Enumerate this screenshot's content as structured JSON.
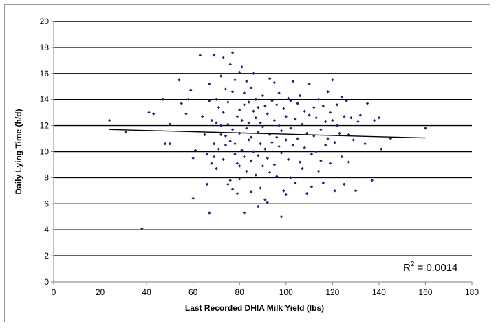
{
  "chart_data": {
    "type": "scatter",
    "xlabel": "Last Recorded DHIA Milk Yield (lbs)",
    "ylabel": "Daily Lying Time (h/d)",
    "xlim": [
      0,
      180
    ],
    "ylim": [
      0,
      20
    ],
    "xticks": [
      "0",
      "20",
      "40",
      "60",
      "80",
      "100",
      "120",
      "140",
      "160",
      "180"
    ],
    "yticks": [
      "0",
      "2",
      "4",
      "6",
      "8",
      "10",
      "12",
      "14",
      "16",
      "18",
      "20"
    ],
    "grid": "horizontal",
    "colors": {
      "points": "#1a237e",
      "trend": "#000000",
      "grid": "#000000"
    },
    "annotation": {
      "text": "R",
      "sup": "2",
      "rest": " = 0.0014",
      "position": "bottom-right"
    },
    "trendline": {
      "x": [
        24,
        160
      ],
      "y": [
        11.7,
        11.05
      ]
    },
    "points": [
      [
        24,
        12.4
      ],
      [
        31,
        11.5
      ],
      [
        38,
        4.1
      ],
      [
        41,
        13.0
      ],
      [
        43,
        12.9
      ],
      [
        47,
        14.0
      ],
      [
        48,
        10.6
      ],
      [
        50,
        10.6
      ],
      [
        50,
        12.1
      ],
      [
        54,
        15.5
      ],
      [
        55,
        13.7
      ],
      [
        57,
        12.9
      ],
      [
        58,
        14.0
      ],
      [
        59,
        14.7
      ],
      [
        60,
        9.5
      ],
      [
        60,
        6.4
      ],
      [
        61,
        10.1
      ],
      [
        63,
        17.4
      ],
      [
        64,
        12.7
      ],
      [
        65,
        11.3
      ],
      [
        66,
        7.5
      ],
      [
        66,
        9.8
      ],
      [
        67,
        5.3
      ],
      [
        67,
        15.2
      ],
      [
        67,
        13.9
      ],
      [
        68,
        9.1
      ],
      [
        68,
        12.4
      ],
      [
        69,
        17.4
      ],
      [
        69,
        10.6
      ],
      [
        69,
        9.6
      ],
      [
        70,
        14.0
      ],
      [
        70,
        8.7
      ],
      [
        70,
        12.2
      ],
      [
        71,
        13.4
      ],
      [
        71,
        10.2
      ],
      [
        72,
        15.8
      ],
      [
        72,
        12.0
      ],
      [
        72,
        11.3
      ],
      [
        73,
        17.2
      ],
      [
        73,
        13.0
      ],
      [
        73,
        9.4
      ],
      [
        74,
        14.8
      ],
      [
        74,
        11.2
      ],
      [
        74,
        10.5
      ],
      [
        75,
        13.8
      ],
      [
        75,
        7.5
      ],
      [
        75,
        12.1
      ],
      [
        76,
        7.8
      ],
      [
        76,
        10.8
      ],
      [
        76,
        16.7
      ],
      [
        77,
        17.6
      ],
      [
        77,
        14.6
      ],
      [
        77,
        11.7
      ],
      [
        77,
        7.1
      ],
      [
        78,
        10.6
      ],
      [
        78,
        9.8
      ],
      [
        78,
        15.5
      ],
      [
        79,
        12.7
      ],
      [
        79,
        9.1
      ],
      [
        79,
        6.8
      ],
      [
        80,
        13.2
      ],
      [
        80,
        11.4
      ],
      [
        80,
        7.9
      ],
      [
        80,
        16.1
      ],
      [
        80,
        8.9
      ],
      [
        81,
        16.5
      ],
      [
        81,
        12.4
      ],
      [
        81,
        10.1
      ],
      [
        82,
        14.5
      ],
      [
        82,
        5.3
      ],
      [
        82,
        9.6
      ],
      [
        82,
        13.6
      ],
      [
        83,
        15.4
      ],
      [
        83,
        11.8
      ],
      [
        83,
        8.5
      ],
      [
        84,
        13.8
      ],
      [
        84,
        10.9
      ],
      [
        84,
        12.2
      ],
      [
        85,
        9.3
      ],
      [
        85,
        14.9
      ],
      [
        85,
        11.1
      ],
      [
        85,
        6.9
      ],
      [
        86,
        16.0
      ],
      [
        86,
        13.1
      ],
      [
        86,
        10.0
      ],
      [
        87,
        12.6
      ],
      [
        87,
        8.2
      ],
      [
        87,
        14.0
      ],
      [
        88,
        11.5
      ],
      [
        88,
        9.7
      ],
      [
        88,
        5.8
      ],
      [
        88,
        13.4
      ],
      [
        89,
        12.2
      ],
      [
        89,
        7.2
      ],
      [
        89,
        10.6
      ],
      [
        90,
        14.3
      ],
      [
        90,
        11.9
      ],
      [
        90,
        8.9
      ],
      [
        91,
        6.3
      ],
      [
        91,
        13.5
      ],
      [
        91,
        10.2
      ],
      [
        92,
        12.9
      ],
      [
        92,
        9.5
      ],
      [
        92,
        6.1
      ],
      [
        93,
        15.6
      ],
      [
        93,
        11.3
      ],
      [
        93,
        8.4
      ],
      [
        94,
        13.9
      ],
      [
        94,
        10.7
      ],
      [
        95,
        12.4
      ],
      [
        95,
        9.0
      ],
      [
        95,
        15.3
      ],
      [
        96,
        11.1
      ],
      [
        96,
        13.6
      ],
      [
        96,
        8.1
      ],
      [
        97,
        10.4
      ],
      [
        97,
        14.5
      ],
      [
        97,
        12.0
      ],
      [
        98,
        5.0
      ],
      [
        98,
        9.9
      ],
      [
        98,
        11.6
      ],
      [
        99,
        13.3
      ],
      [
        99,
        7.0
      ],
      [
        100,
        10.9
      ],
      [
        100,
        12.7
      ],
      [
        100,
        6.7
      ],
      [
        101,
        14.1
      ],
      [
        101,
        9.4
      ],
      [
        102,
        11.8
      ],
      [
        102,
        13.9
      ],
      [
        102,
        8.0
      ],
      [
        103,
        15.4
      ],
      [
        103,
        10.5
      ],
      [
        104,
        12.5
      ],
      [
        104,
        7.6
      ],
      [
        105,
        13.7
      ],
      [
        105,
        11.0
      ],
      [
        106,
        9.2
      ],
      [
        106,
        14.3
      ],
      [
        107,
        12.1
      ],
      [
        107,
        8.7
      ],
      [
        108,
        10.3
      ],
      [
        108,
        13.1
      ],
      [
        109,
        6.8
      ],
      [
        109,
        11.4
      ],
      [
        110,
        12.8
      ],
      [
        110,
        15.2
      ],
      [
        111,
        9.8
      ],
      [
        111,
        7.3
      ],
      [
        112,
        13.4
      ],
      [
        112,
        11.2
      ],
      [
        113,
        10.0
      ],
      [
        113,
        12.6
      ],
      [
        114,
        8.5
      ],
      [
        114,
        14.0
      ],
      [
        115,
        11.7
      ],
      [
        115,
        9.3
      ],
      [
        116,
        13.5
      ],
      [
        116,
        7.6
      ],
      [
        117,
        12.3
      ],
      [
        117,
        10.5
      ],
      [
        118,
        14.6
      ],
      [
        118,
        11.0
      ],
      [
        119,
        9.1
      ],
      [
        119,
        13.0
      ],
      [
        120,
        12.4
      ],
      [
        120,
        15.5
      ],
      [
        121,
        10.7
      ],
      [
        121,
        7.0
      ],
      [
        122,
        12.0
      ],
      [
        122,
        13.6
      ],
      [
        123,
        11.4
      ],
      [
        124,
        9.6
      ],
      [
        124,
        14.2
      ],
      [
        125,
        12.7
      ],
      [
        125,
        7.5
      ],
      [
        126,
        13.9
      ],
      [
        127,
        11.3
      ],
      [
        127,
        9.2
      ],
      [
        128,
        12.6
      ],
      [
        129,
        10.9
      ],
      [
        130,
        7.0
      ],
      [
        131,
        12.3
      ],
      [
        132,
        12.8
      ],
      [
        134,
        10.6
      ],
      [
        135,
        13.7
      ],
      [
        137,
        7.8
      ],
      [
        138,
        12.4
      ],
      [
        140,
        12.6
      ],
      [
        141,
        10.2
      ],
      [
        145,
        11.0
      ],
      [
        160,
        11.8
      ]
    ]
  }
}
